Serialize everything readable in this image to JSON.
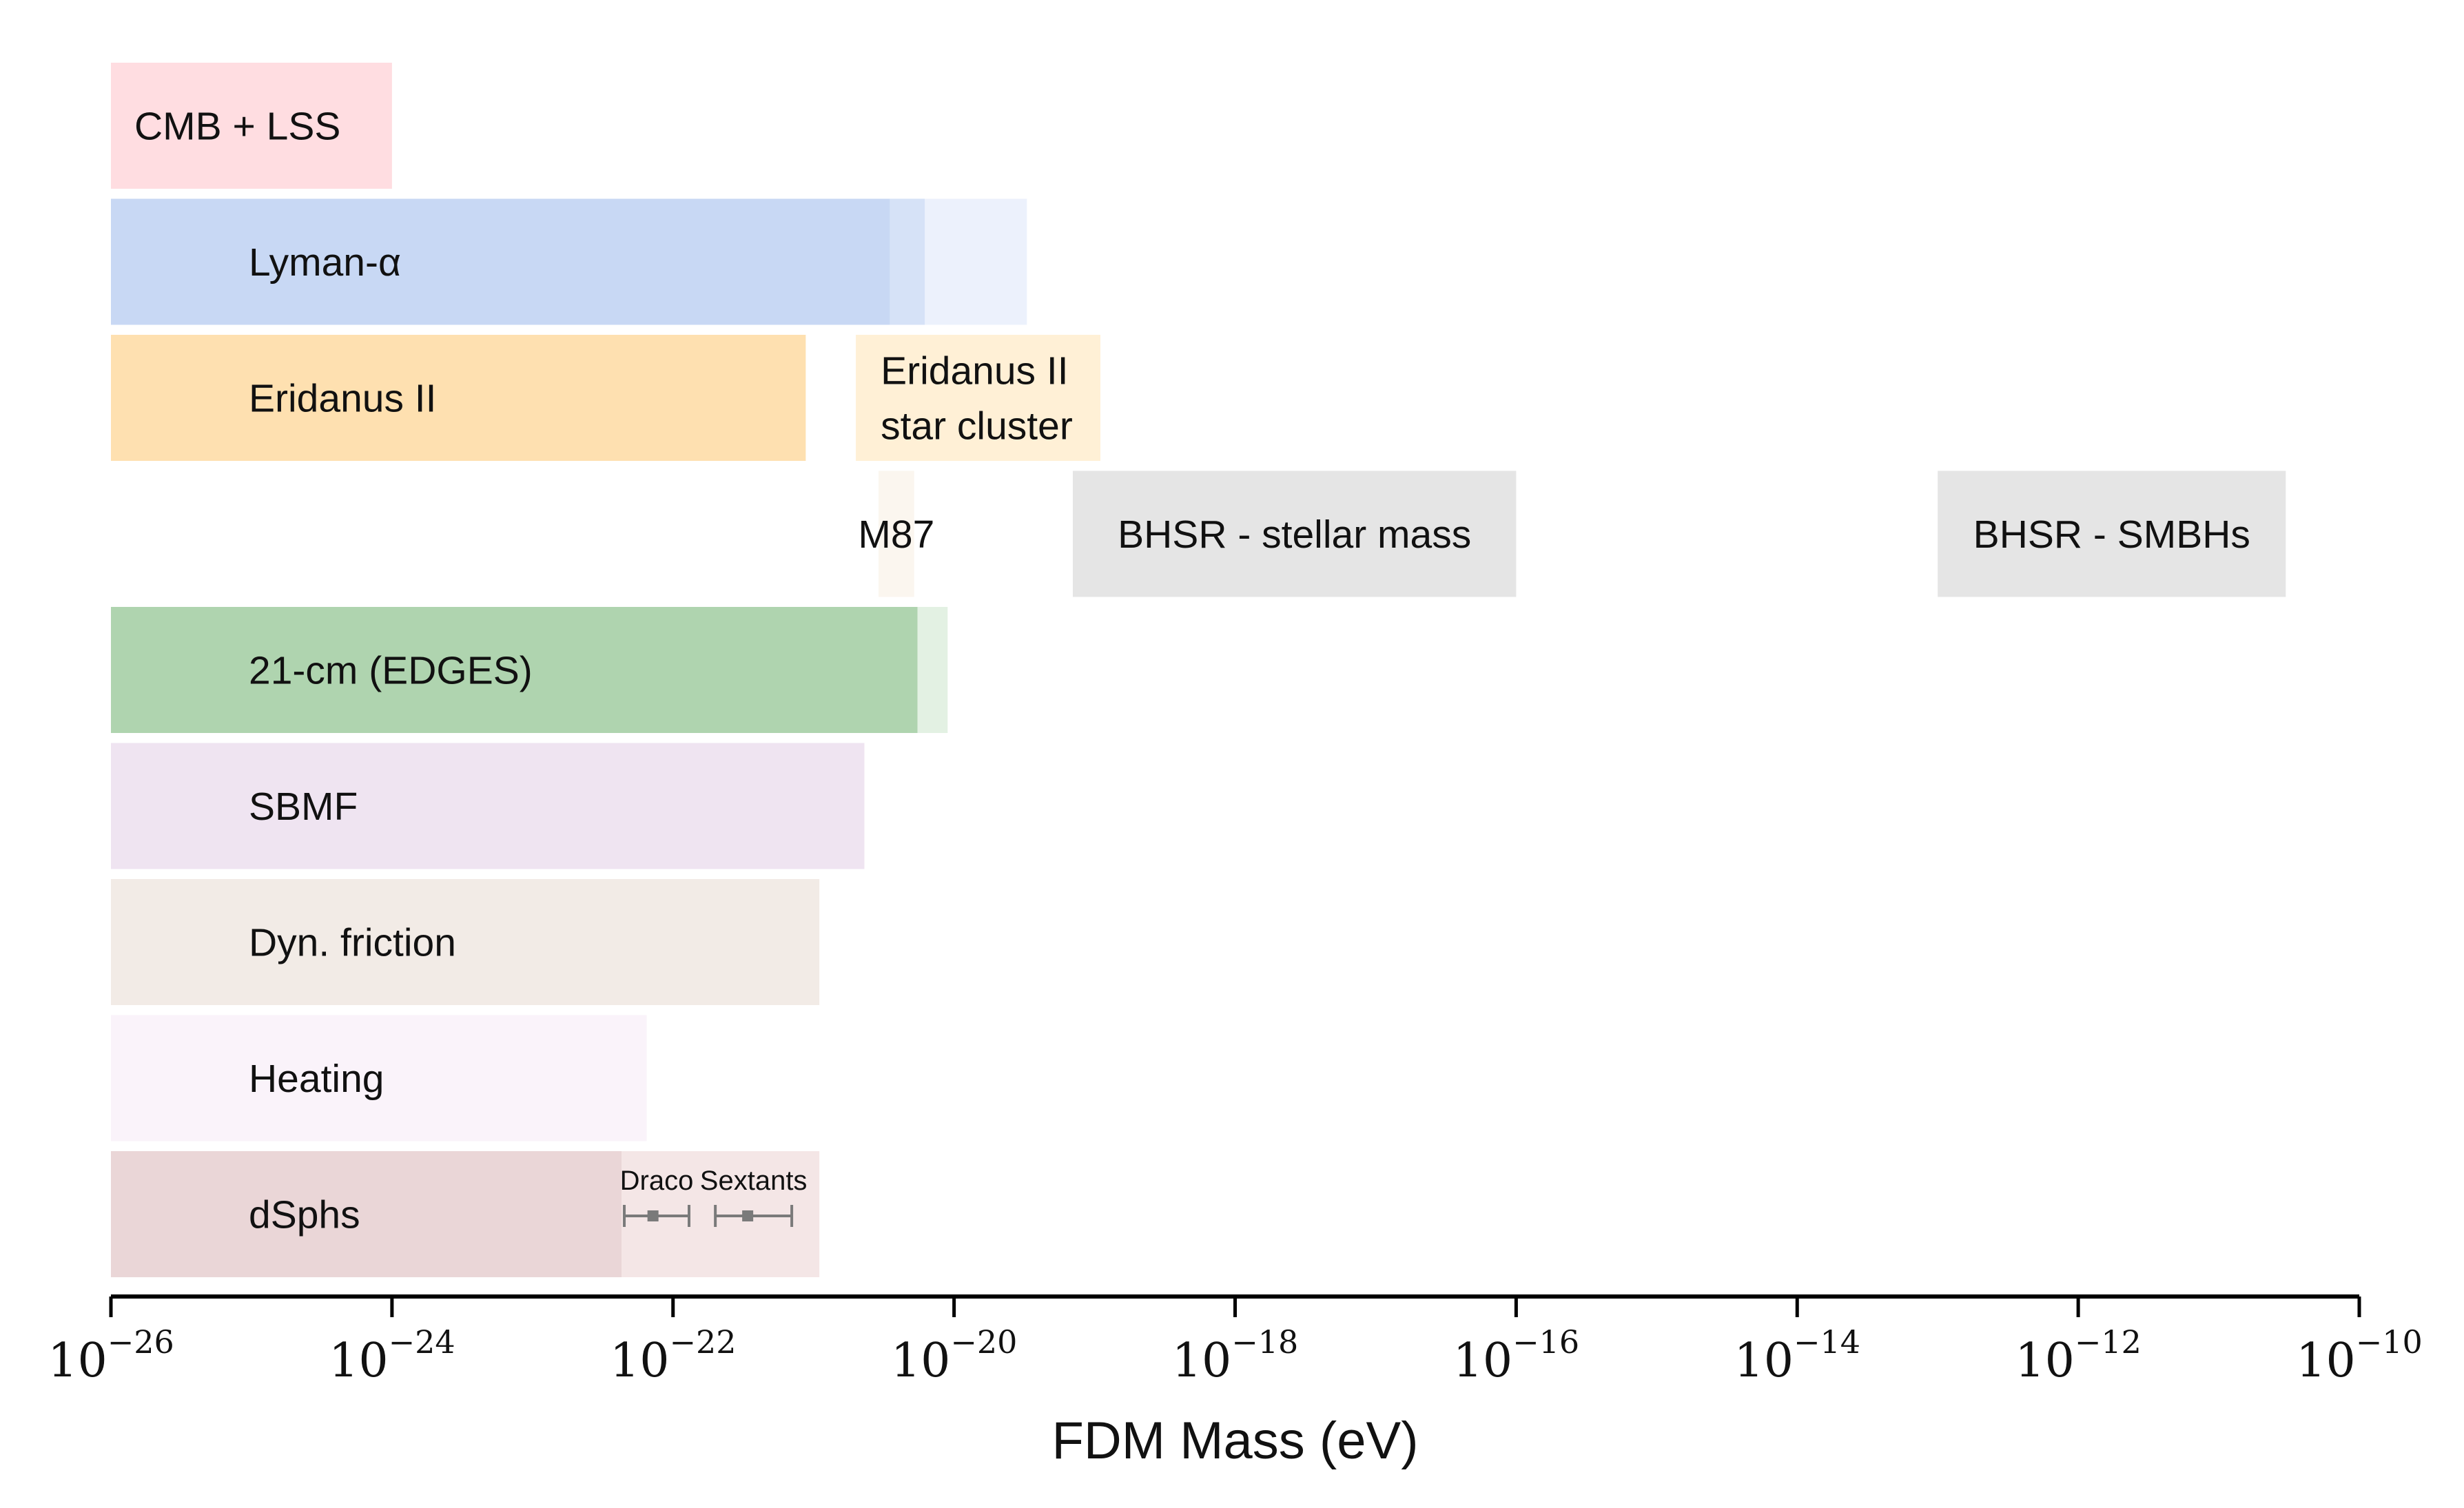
{
  "chart_data": {
    "type": "bar",
    "orientation": "horizontal-range",
    "title": "",
    "xlabel": "FDM Mass (eV)",
    "ylabel": "",
    "x_scale": "log",
    "xlim": [
      1e-26,
      1e-10
    ],
    "x_ticks": [
      {
        "base": "10",
        "exp": "−26"
      },
      {
        "base": "10",
        "exp": "−24"
      },
      {
        "base": "10",
        "exp": "−22"
      },
      {
        "base": "10",
        "exp": "−20"
      },
      {
        "base": "10",
        "exp": "−18"
      },
      {
        "base": "10",
        "exp": "−16"
      },
      {
        "base": "10",
        "exp": "−14"
      },
      {
        "base": "10",
        "exp": "−12"
      },
      {
        "base": "10",
        "exp": "−10"
      }
    ],
    "grid": false,
    "legend": "none",
    "rows": [
      {
        "id": "cmb-lss",
        "label": "CMB + LSS",
        "label_lines": [
          "CMB + LSS"
        ],
        "segments": [
          {
            "from": 1e-26,
            "to": 1e-24,
            "color": "#ffdde1"
          }
        ]
      },
      {
        "id": "lyman-alpha",
        "label": "Lyman-α",
        "label_lines": [
          "Lyman-α"
        ],
        "segments": [
          {
            "from": 1e-26,
            "to": 3.5e-21,
            "color": "#c8d8f4"
          },
          {
            "from": 3.5e-21,
            "to": 6.2e-21,
            "color": "#d6e2f7"
          },
          {
            "from": 6.2e-21,
            "to": 3.3e-20,
            "color": "#ecf1fc"
          }
        ]
      },
      {
        "id": "eridanus-ii",
        "label": "Eridanus II",
        "label_lines": [
          "Eridanus II"
        ],
        "segments": [
          {
            "from": 1e-26,
            "to": 8.8e-22,
            "color": "#fee0b0"
          }
        ]
      },
      {
        "id": "eridanus-ii-star-cluster",
        "label": "Eridanus II star cluster",
        "label_lines": [
          "Eridanus II",
          "star cluster"
        ],
        "segments": [
          {
            "from": 2e-21,
            "to": 1.1e-19,
            "color": "#fff0d6"
          }
        ]
      },
      {
        "id": "m87",
        "label": "M87",
        "label_lines": [
          "M87"
        ],
        "segments": [
          {
            "from": 2.9e-21,
            "to": 5.2e-21,
            "color": "#fbf6ef"
          }
        ]
      },
      {
        "id": "bhsr-stellar-mass",
        "label": "BHSR - stellar mass",
        "label_lines": [
          "BHSR - stellar mass"
        ],
        "segments": [
          {
            "from": 7e-20,
            "to": 1e-16,
            "color": "#e5e5e5"
          }
        ]
      },
      {
        "id": "bhsr-smbhs",
        "label": "BHSR - SMBHs",
        "label_lines": [
          "BHSR - SMBHs"
        ],
        "segments": [
          {
            "from": 1e-13,
            "to": 3e-11,
            "color": "#e5e5e5"
          }
        ]
      },
      {
        "id": "21cm-edges",
        "label": "21-cm (EDGES)",
        "label_lines": [
          "21-cm (EDGES)"
        ],
        "segments": [
          {
            "from": 1e-26,
            "to": 5.5e-21,
            "color": "#afd4af"
          },
          {
            "from": 5.5e-21,
            "to": 9e-21,
            "color": "#e3f1e3"
          }
        ]
      },
      {
        "id": "sbmf",
        "label": "SBMF",
        "label_lines": [
          "SBMF"
        ],
        "segments": [
          {
            "from": 1e-26,
            "to": 2.3e-21,
            "color": "#efe4f1"
          }
        ]
      },
      {
        "id": "dyn-friction",
        "label": "Dyn. friction",
        "label_lines": [
          "Dyn. friction"
        ],
        "segments": [
          {
            "from": 1e-26,
            "to": 1.1e-21,
            "color": "#f2ebe6"
          }
        ]
      },
      {
        "id": "heating",
        "label": "Heating",
        "label_lines": [
          "Heating"
        ],
        "segments": [
          {
            "from": 1e-26,
            "to": 6.5e-23,
            "color": "#faf3fa"
          }
        ]
      },
      {
        "id": "dsphs",
        "label": "dSphs",
        "label_lines": [
          "dSphs"
        ],
        "segments": [
          {
            "from": 1e-26,
            "to": 4.3e-23,
            "color": "#ead6d7"
          },
          {
            "from": 4.3e-23,
            "to": 1.1e-21,
            "color": "#f4e6e6"
          }
        ]
      }
    ],
    "markers": [
      {
        "id": "draco",
        "row": "dsphs",
        "label": "Draco",
        "center": 7.2e-23,
        "low": 4.5e-23,
        "high": 1.3e-22,
        "color": "#7a7a7a"
      },
      {
        "id": "sextants",
        "row": "dsphs",
        "label": "Sextants",
        "center": 3.4e-22,
        "low": 2e-22,
        "high": 7e-22,
        "color": "#7a7a7a"
      }
    ]
  }
}
